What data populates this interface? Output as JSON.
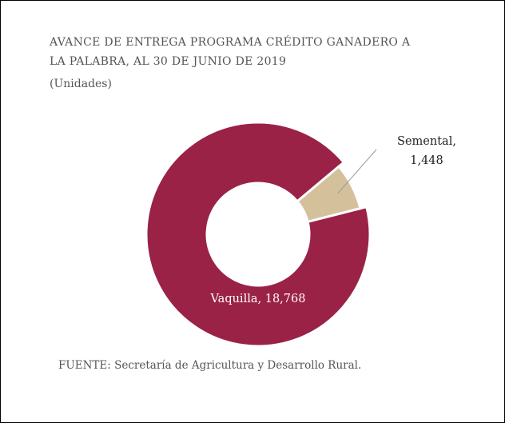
{
  "chart_data": {
    "type": "donut",
    "title": "AVANCE DE ENTREGA PROGRAMA CRÉDITO GANADERO A LA PALABRA, AL 30 DE JUNIO DE 2019",
    "subtitle": "(Unidades)",
    "categories": [
      "Vaquilla",
      "Semental"
    ],
    "values": [
      18768,
      1448
    ],
    "value_labels": [
      "Vaquilla, 18,768",
      "Semental, 1,448"
    ],
    "colors": [
      "#9b2247",
      "#d4c19c"
    ],
    "source": "FUENTE: Secretaría de Agricultura y Desarrollo Rural."
  }
}
